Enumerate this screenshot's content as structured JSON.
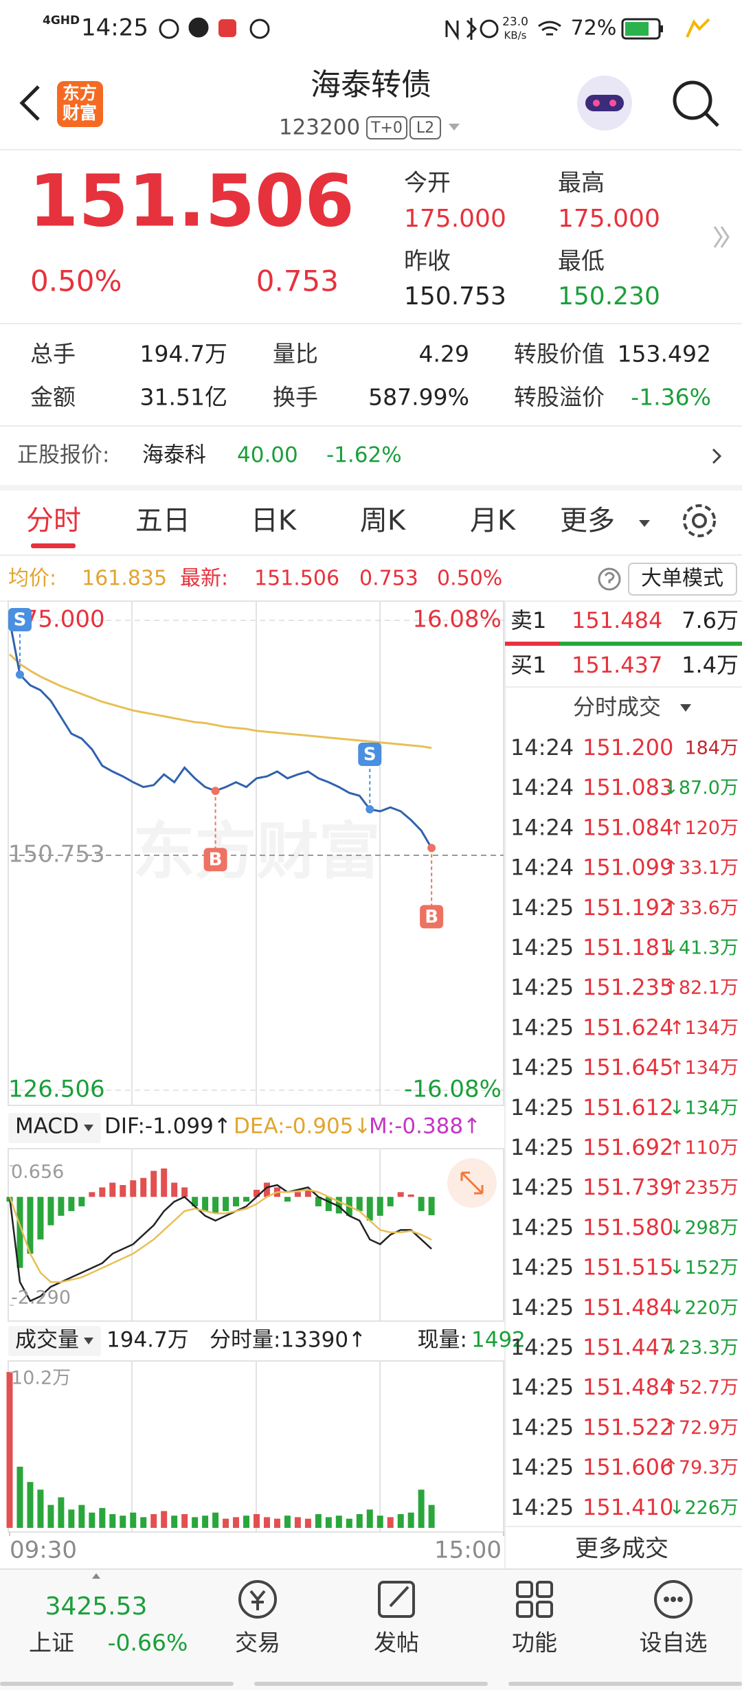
{
  "status_bar": {
    "network": "4GHD",
    "time": "14:25",
    "speed": "23.0",
    "speed_unit": "KB/s",
    "battery": "72%"
  },
  "header": {
    "logo": [
      "东方",
      "财富"
    ],
    "title": "海泰转债",
    "code": "123200",
    "badges": [
      "T+0",
      "L2"
    ]
  },
  "quote": {
    "price": "151.506",
    "change_pct": "0.50%",
    "change": "0.753",
    "fields": [
      {
        "label": "今开",
        "value": "175.000"
      },
      {
        "label": "最高",
        "value": "175.000"
      },
      {
        "label": "昨收",
        "value": "150.753"
      },
      {
        "label": "最低",
        "value": "150.230"
      }
    ]
  },
  "stats": [
    [
      {
        "label": "总手",
        "value": "194.7万"
      },
      {
        "label": "量比",
        "value": "4.29"
      },
      {
        "label": "转股价值",
        "value": "153.492"
      }
    ],
    [
      {
        "label": "金额",
        "value": "31.51亿"
      },
      {
        "label": "换手",
        "value": "587.99%"
      },
      {
        "label": "转股溢价",
        "value": "-1.36%"
      }
    ]
  ],
  "stock_quote": {
    "label": "正股报价:",
    "name": "海泰科",
    "price": "40.00",
    "change_pct": "-1.62%"
  },
  "tabs": [
    "分时",
    "五日",
    "日K",
    "周K",
    "月K",
    "更多"
  ],
  "info": {
    "avg_label": "均价:",
    "avg": "161.835",
    "latest_label": "最新:",
    "latest": "151.506",
    "change": "0.753",
    "change_pct": "0.50%",
    "mode": "大单模式"
  },
  "chart_data": [
    {
      "type": "line",
      "watermark": "东方财富",
      "x": [
        0,
        5,
        10,
        15,
        20,
        25,
        30,
        35,
        40,
        45,
        50,
        55,
        60,
        65,
        70,
        75,
        80,
        85,
        90,
        95,
        100,
        105,
        110,
        115,
        120,
        125,
        130,
        135,
        140,
        145,
        150,
        155,
        160,
        165,
        170,
        175,
        180,
        185,
        190,
        195,
        200,
        205
      ],
      "xlim": [
        0,
        240
      ],
      "ylim": [
        126.506,
        175
      ],
      "yticks": [
        {
          "value": 175,
          "label": "175.000"
        },
        {
          "value": 150.753,
          "label": "150.753"
        },
        {
          "value": 126.506,
          "label": "126.506"
        }
      ],
      "y2lim": [
        -16.08,
        16.08
      ],
      "y2ticks": [
        {
          "value": 16.08,
          "label": "16.08%"
        },
        {
          "value": -16.08,
          "label": "-16.08%"
        }
      ],
      "grid": true,
      "series": [
        {
          "color": "#2f62ad",
          "values": [
            175.0,
            169.4,
            168.3,
            167.8,
            166.7,
            165.0,
            163.3,
            162.8,
            161.7,
            160.0,
            159.4,
            158.9,
            158.3,
            157.8,
            158.0,
            159.1,
            158.3,
            159.8,
            158.7,
            157.8,
            157.4,
            157.8,
            158.3,
            157.8,
            158.7,
            158.9,
            159.4,
            158.7,
            159.1,
            159.4,
            158.7,
            158.3,
            157.8,
            157.2,
            156.9,
            155.5,
            155.3,
            155.7,
            155.3,
            154.4,
            153.3,
            151.506
          ]
        },
        {
          "color": "#e8bf55",
          "values": [
            171.5,
            170.5,
            169.8,
            169.2,
            168.7,
            168.2,
            167.8,
            167.4,
            167.0,
            166.6,
            166.3,
            166.0,
            165.7,
            165.5,
            165.3,
            165.1,
            164.9,
            164.7,
            164.5,
            164.4,
            164.2,
            164.0,
            163.9,
            163.8,
            163.6,
            163.5,
            163.4,
            163.3,
            163.2,
            163.1,
            163.0,
            162.9,
            162.8,
            162.7,
            162.6,
            162.5,
            162.4,
            162.3,
            162.2,
            162.1,
            162.0,
            161.835
          ]
        }
      ],
      "markers": [
        {
          "label": "S",
          "x": 5,
          "position": "above",
          "color": "#4a8fe0"
        },
        {
          "label": "B",
          "x": 100,
          "position": "below",
          "color": "#ee7262"
        },
        {
          "label": "S",
          "x": 175,
          "position": "above",
          "color": "#4a8fe0"
        },
        {
          "label": "B",
          "x": 205,
          "position": "below",
          "color": "#ee7262"
        }
      ]
    },
    {
      "type": "bar",
      "header": {
        "indicator": "MACD",
        "items": [
          "DIF:-1.099↑",
          "DEA:-0.905↓",
          "M:-0.388↑"
        ]
      },
      "x": [
        0,
        5,
        10,
        15,
        20,
        25,
        30,
        35,
        40,
        45,
        50,
        55,
        60,
        65,
        70,
        75,
        80,
        85,
        90,
        95,
        100,
        105,
        110,
        115,
        120,
        125,
        130,
        135,
        140,
        145,
        150,
        155,
        160,
        165,
        170,
        175,
        180,
        185,
        190,
        195,
        200,
        205
      ],
      "xlim": [
        0,
        240
      ],
      "ylim": [
        -2.29,
        0.656
      ],
      "yticks": [
        0.656,
        {
          "value": -2.29,
          "label": "-2.290"
        }
      ],
      "color_by": "sign",
      "colors": {
        "up": "#e25050",
        "down": "#2aa63c"
      },
      "values": [
        -0.1,
        -1.5,
        -1.2,
        -0.9,
        -0.6,
        -0.4,
        -0.3,
        -0.2,
        0.1,
        0.2,
        0.3,
        0.25,
        0.35,
        0.4,
        0.55,
        0.6,
        0.3,
        0.2,
        -0.2,
        -0.3,
        -0.35,
        -0.3,
        -0.2,
        -0.1,
        0.15,
        0.3,
        0.2,
        -0.1,
        0.1,
        0.15,
        -0.2,
        -0.3,
        -0.35,
        -0.4,
        -0.3,
        -0.5,
        -0.4,
        -0.2,
        0.1,
        0.05,
        -0.3,
        -0.388
      ],
      "lines": [
        {
          "color": "#222222",
          "values": [
            0.0,
            -1.8,
            -2.2,
            -2.1,
            -1.9,
            -1.8,
            -1.7,
            -1.6,
            -1.5,
            -1.4,
            -1.2,
            -1.1,
            -1.0,
            -0.8,
            -0.6,
            -0.3,
            -0.1,
            0.0,
            -0.2,
            -0.4,
            -0.5,
            -0.4,
            -0.3,
            -0.2,
            0.0,
            0.2,
            0.25,
            0.1,
            0.15,
            0.2,
            0.0,
            -0.1,
            -0.2,
            -0.4,
            -0.5,
            -0.9,
            -1.0,
            -0.8,
            -0.7,
            -0.7,
            -0.9,
            -1.099
          ]
        },
        {
          "color": "#e8bf55",
          "values": [
            0.0,
            -0.6,
            -1.2,
            -1.6,
            -1.8,
            -1.8,
            -1.75,
            -1.7,
            -1.6,
            -1.5,
            -1.4,
            -1.3,
            -1.2,
            -1.05,
            -0.9,
            -0.7,
            -0.5,
            -0.3,
            -0.25,
            -0.3,
            -0.35,
            -0.35,
            -0.3,
            -0.25,
            -0.15,
            0.0,
            0.1,
            0.1,
            0.12,
            0.15,
            0.1,
            0.0,
            -0.1,
            -0.2,
            -0.3,
            -0.5,
            -0.7,
            -0.75,
            -0.75,
            -0.72,
            -0.8,
            -0.905
          ]
        }
      ]
    },
    {
      "type": "bar",
      "header": {
        "indicator": "成交量",
        "items": [
          "194.7万",
          "分时量:13390↑"
        ],
        "current_label": "现量:",
        "current_value": "1492"
      },
      "x": [
        0,
        5,
        10,
        15,
        20,
        25,
        30,
        35,
        40,
        45,
        50,
        55,
        60,
        65,
        70,
        75,
        80,
        85,
        90,
        95,
        100,
        105,
        110,
        115,
        120,
        125,
        130,
        135,
        140,
        145,
        150,
        155,
        160,
        165,
        170,
        175,
        180,
        185,
        190,
        195,
        200,
        205
      ],
      "xlim": [
        0,
        240
      ],
      "xticks": [
        {
          "value": 0,
          "label": "09:30"
        },
        {
          "value": 240,
          "label": "15:00"
        }
      ],
      "ylim": [
        0,
        10.2
      ],
      "yticks": [
        {
          "value": 10.2,
          "label": "10.2万"
        }
      ],
      "color_by": "price_change",
      "colors": {
        "up": "#e25050",
        "down": "#2aa63c"
      },
      "values": [
        10.2,
        4.0,
        3.0,
        2.5,
        1.5,
        2.0,
        1.2,
        1.5,
        1.0,
        1.3,
        0.9,
        0.8,
        1.0,
        0.7,
        0.9,
        1.1,
        0.8,
        0.9,
        0.7,
        0.8,
        1.0,
        0.6,
        0.7,
        0.8,
        0.9,
        0.7,
        0.6,
        0.8,
        0.7,
        0.6,
        0.9,
        0.7,
        0.8,
        0.6,
        0.9,
        1.2,
        0.8,
        0.7,
        0.9,
        1.0,
        2.5,
        1.5
      ]
    }
  ],
  "order_book": [
    [
      "卖1",
      "151.484",
      "7.6万"
    ],
    [
      "买1",
      "151.437",
      "1.4万"
    ]
  ],
  "trades": {
    "title": "分时成交",
    "rows": [
      [
        "14:24",
        "151.200",
        "184万"
      ],
      [
        "14:24",
        "151.083",
        "↓87.0万"
      ],
      [
        "14:24",
        "151.084",
        "↑120万"
      ],
      [
        "14:24",
        "151.099",
        "↑33.1万"
      ],
      [
        "14:25",
        "151.192",
        "↑33.6万"
      ],
      [
        "14:25",
        "151.181",
        "↓41.3万"
      ],
      [
        "14:25",
        "151.235",
        "↑82.1万"
      ],
      [
        "14:25",
        "151.624",
        "↑134万"
      ],
      [
        "14:25",
        "151.645",
        "↑134万"
      ],
      [
        "14:25",
        "151.612",
        "↓134万"
      ],
      [
        "14:25",
        "151.692",
        "↑110万"
      ],
      [
        "14:25",
        "151.739",
        "↑235万"
      ],
      [
        "14:25",
        "151.580",
        "↓298万"
      ],
      [
        "14:25",
        "151.515",
        "↓152万"
      ],
      [
        "14:25",
        "151.484",
        "↓220万"
      ],
      [
        "14:25",
        "151.447",
        "↓23.3万"
      ],
      [
        "14:25",
        "151.484",
        "↑52.7万"
      ],
      [
        "14:25",
        "151.522",
        "↑72.9万"
      ],
      [
        "14:25",
        "151.606",
        "↑79.3万"
      ],
      [
        "14:25",
        "151.410",
        "↓226万"
      ]
    ],
    "more": "更多成交"
  },
  "bottom_nav": {
    "index_value": "3425.53",
    "index_name": "上证",
    "index_change": "-0.66%",
    "items": [
      "交易",
      "发帖",
      "功能",
      "设自选"
    ]
  }
}
